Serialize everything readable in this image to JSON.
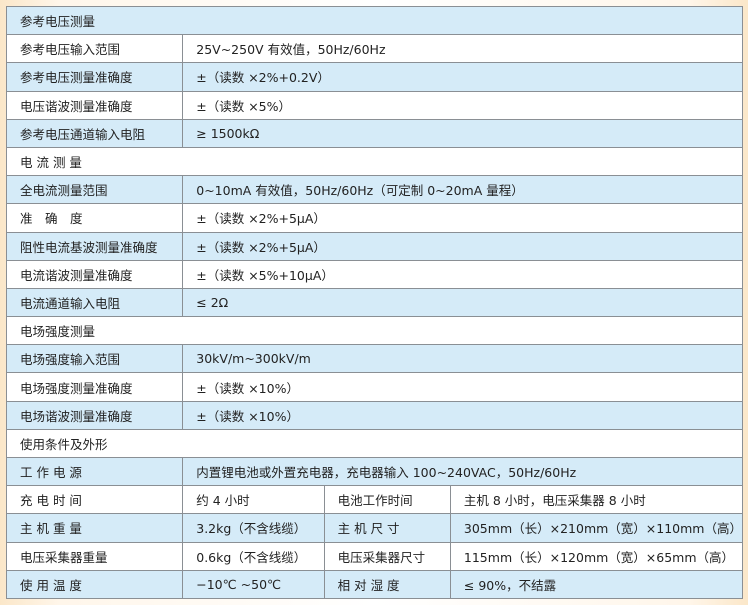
{
  "rows": [
    {
      "type": "section",
      "label": "参考电压测量"
    },
    {
      "type": "pair",
      "label": "参考电压输入范围",
      "value": "25V~250V 有效值，50Hz/60Hz"
    },
    {
      "type": "pair",
      "label": "参考电压测量准确度",
      "value": "±（读数 ×2%+0.2V）"
    },
    {
      "type": "pair",
      "label": "电压谐波测量准确度",
      "value": "±（读数 ×5%）"
    },
    {
      "type": "pair",
      "label": "参考电压通道输入电阻",
      "value": "≥ 1500kΩ"
    },
    {
      "type": "section",
      "label": "电 流 测 量"
    },
    {
      "type": "pair",
      "label": "全电流测量范围",
      "value": "0~10mA 有效值，50Hz/60Hz（可定制 0~20mA 量程）"
    },
    {
      "type": "pair",
      "label": "准　确　度",
      "value": "±（读数 ×2%+5μA）"
    },
    {
      "type": "pair",
      "label": "阻性电流基波测量准确度",
      "value": "±（读数 ×2%+5μA）"
    },
    {
      "type": "pair",
      "label": "电流谐波测量准确度",
      "value": "±（读数 ×5%+10μA）"
    },
    {
      "type": "pair",
      "label": "电流通道输入电阻",
      "value": "≤ 2Ω"
    },
    {
      "type": "section",
      "label": "电场强度测量"
    },
    {
      "type": "pair",
      "label": "电场强度输入范围",
      "value": "30kV/m~300kV/m"
    },
    {
      "type": "pair",
      "label": "电场强度测量准确度",
      "value": "±（读数 ×10%）"
    },
    {
      "type": "pair",
      "label": "电场谐波测量准确度",
      "value": "±（读数 ×10%）"
    },
    {
      "type": "section",
      "label": "使用条件及外形"
    },
    {
      "type": "pair",
      "label": "工 作 电 源",
      "value": "内置锂电池或外置充电器，充电器输入 100~240VAC，50Hz/60Hz"
    },
    {
      "type": "quad",
      "label": "充 电 时 间",
      "value": "约 4 小时",
      "label2": "电池工作时间",
      "value2": "主机 8 小时，电压采集器 8 小时"
    },
    {
      "type": "quad",
      "label": "主 机 重 量",
      "value": "3.2kg（不含线缆）",
      "label2": "主 机 尺 寸",
      "value2": "305mm（长）×210mm（宽）×110mm（高）"
    },
    {
      "type": "quad",
      "label": "电压采集器重量",
      "value": "0.6kg（不含线缆）",
      "label2": "电压采集器尺寸",
      "value2": "115mm（长）×120mm（宽）×65mm（高）"
    },
    {
      "type": "quad",
      "label": "使 用 温 度",
      "value": "−10℃ ~50℃",
      "label2": "相 对 湿 度",
      "value2": "≤ 90%，不结露"
    }
  ]
}
